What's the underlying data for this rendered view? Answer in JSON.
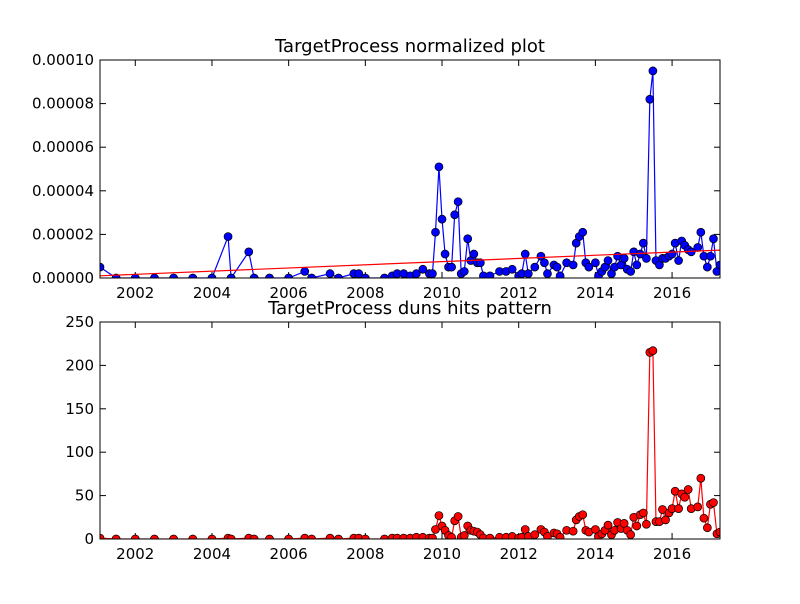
{
  "chart_data": [
    {
      "type": "line",
      "title": "TargetProcess normalized plot",
      "xlim": [
        2001.08,
        2017.25
      ],
      "xticks": [
        2002,
        2004,
        2006,
        2008,
        2010,
        2012,
        2014,
        2016
      ],
      "ylim": [
        0,
        0.0001
      ],
      "yticks": [
        {
          "value": 0,
          "label": "0.00000"
        },
        {
          "value": 2e-05,
          "label": "0.00002"
        },
        {
          "value": 4e-05,
          "label": "0.00004"
        },
        {
          "value": 6e-05,
          "label": "0.00006"
        },
        {
          "value": 8e-05,
          "label": "0.00008"
        },
        {
          "value": 0.0001,
          "label": "0.00010"
        }
      ],
      "series": [
        {
          "color": "#0000ff",
          "marker": "o",
          "x": [
            2001.08,
            2001.5,
            2002.0,
            2002.5,
            2003.0,
            2003.5,
            2004.0,
            2004.42,
            2004.5,
            2004.96,
            2005.1,
            2005.5,
            2006.0,
            2006.42,
            2006.6,
            2007.08,
            2007.3,
            2007.7,
            2007.83,
            2008.0,
            2008.5,
            2008.7,
            2008.83,
            2009.0,
            2009.17,
            2009.33,
            2009.5,
            2009.67,
            2009.75,
            2009.83,
            2009.92,
            2010.0,
            2010.08,
            2010.17,
            2010.25,
            2010.33,
            2010.42,
            2010.5,
            2010.58,
            2010.67,
            2010.75,
            2010.83,
            2010.92,
            2011.0,
            2011.08,
            2011.25,
            2011.5,
            2011.67,
            2011.83,
            2012.0,
            2012.08,
            2012.17,
            2012.25,
            2012.42,
            2012.58,
            2012.67,
            2012.75,
            2012.92,
            2013.0,
            2013.08,
            2013.25,
            2013.42,
            2013.5,
            2013.58,
            2013.67,
            2013.75,
            2013.83,
            2014.0,
            2014.08,
            2014.17,
            2014.25,
            2014.33,
            2014.42,
            2014.5,
            2014.58,
            2014.67,
            2014.75,
            2014.83,
            2014.92,
            2015.0,
            2015.08,
            2015.17,
            2015.25,
            2015.33,
            2015.42,
            2015.5,
            2015.58,
            2015.67,
            2015.75,
            2015.83,
            2015.92,
            2016.0,
            2016.08,
            2016.17,
            2016.25,
            2016.33,
            2016.42,
            2016.5,
            2016.67,
            2016.75,
            2016.83,
            2016.92,
            2017.0,
            2017.08,
            2017.17,
            2017.25
          ],
          "values": [
            5e-06,
            0,
            0,
            0,
            0,
            0,
            0,
            1.9e-05,
            0,
            1.2e-05,
            0,
            0,
            0,
            3e-06,
            0,
            2e-06,
            0,
            2e-06,
            2e-06,
            0,
            0,
            1e-06,
            2e-06,
            2e-06,
            1e-06,
            2e-06,
            4e-06,
            2e-06,
            2e-06,
            2.1e-05,
            5.1e-05,
            2.7e-05,
            1.1e-05,
            5e-06,
            5e-06,
            2.9e-05,
            3.5e-05,
            2e-06,
            3e-06,
            1.8e-05,
            8e-06,
            1.1e-05,
            7e-06,
            7e-06,
            1e-06,
            1e-06,
            3e-06,
            3e-06,
            4e-06,
            1e-06,
            2e-06,
            1.1e-05,
            2e-06,
            5e-06,
            1e-05,
            7e-06,
            2e-06,
            6e-06,
            5e-06,
            1e-06,
            7e-06,
            6e-06,
            1.6e-05,
            1.9e-05,
            2.1e-05,
            7e-06,
            5e-06,
            7e-06,
            1e-06,
            3e-06,
            5e-06,
            8e-06,
            2e-06,
            5e-06,
            1e-05,
            6e-06,
            9e-06,
            4e-06,
            3e-06,
            1.2e-05,
            6e-06,
            1.1e-05,
            1.6e-05,
            9e-06,
            8.2e-05,
            9.5e-05,
            8e-06,
            6e-06,
            9e-06,
            9e-06,
            1e-05,
            1.1e-05,
            1.6e-05,
            8e-06,
            1.7e-05,
            1.5e-05,
            1.3e-05,
            1.2e-05,
            1.4e-05,
            2.1e-05,
            1e-05,
            5e-06,
            1e-05,
            1.8e-05,
            3e-06,
            6e-06
          ]
        },
        {
          "color": "#ff0000",
          "marker": "none",
          "x": [
            2001.08,
            2017.25
          ],
          "values": [
            1e-06,
            1.28e-05
          ]
        }
      ]
    },
    {
      "type": "line",
      "title": "TargetProcess duns hits pattern",
      "xlim": [
        2001.08,
        2017.25
      ],
      "xticks": [
        2002,
        2004,
        2006,
        2008,
        2010,
        2012,
        2014,
        2016
      ],
      "ylim": [
        0,
        250
      ],
      "yticks": [
        0,
        50,
        100,
        150,
        200,
        250
      ],
      "series": [
        {
          "color": "#ff0000",
          "marker": "o",
          "x": [
            2001.08,
            2001.5,
            2002.0,
            2002.5,
            2003.0,
            2003.5,
            2004.0,
            2004.42,
            2004.5,
            2004.96,
            2005.1,
            2005.5,
            2006.0,
            2006.42,
            2006.6,
            2007.08,
            2007.3,
            2007.7,
            2007.83,
            2008.0,
            2008.5,
            2008.7,
            2008.83,
            2009.0,
            2009.17,
            2009.33,
            2009.5,
            2009.67,
            2009.75,
            2009.83,
            2009.92,
            2010.0,
            2010.08,
            2010.17,
            2010.25,
            2010.33,
            2010.42,
            2010.5,
            2010.58,
            2010.67,
            2010.75,
            2010.83,
            2010.92,
            2011.0,
            2011.08,
            2011.25,
            2011.5,
            2011.67,
            2011.83,
            2012.0,
            2012.08,
            2012.17,
            2012.25,
            2012.42,
            2012.58,
            2012.67,
            2012.75,
            2012.92,
            2013.0,
            2013.08,
            2013.25,
            2013.42,
            2013.5,
            2013.58,
            2013.67,
            2013.75,
            2013.83,
            2014.0,
            2014.08,
            2014.17,
            2014.25,
            2014.33,
            2014.42,
            2014.5,
            2014.58,
            2014.67,
            2014.75,
            2014.83,
            2014.92,
            2015.0,
            2015.08,
            2015.17,
            2015.25,
            2015.33,
            2015.42,
            2015.5,
            2015.58,
            2015.67,
            2015.75,
            2015.83,
            2015.92,
            2016.0,
            2016.08,
            2016.17,
            2016.25,
            2016.33,
            2016.42,
            2016.5,
            2016.67,
            2016.75,
            2016.83,
            2016.92,
            2017.0,
            2017.08,
            2017.17,
            2017.25
          ],
          "values": [
            1,
            0,
            0,
            0,
            0,
            0,
            0,
            1,
            0,
            1,
            0,
            0,
            0,
            1,
            0,
            1,
            0,
            1,
            1,
            0,
            0,
            1,
            1,
            1,
            1,
            2,
            2,
            1,
            1,
            11,
            27,
            15,
            10,
            4,
            2,
            21,
            26,
            2,
            4,
            15,
            10,
            9,
            8,
            5,
            1,
            1,
            2,
            2,
            3,
            1,
            2,
            11,
            3,
            5,
            11,
            8,
            3,
            7,
            6,
            2,
            10,
            9,
            22,
            26,
            28,
            10,
            8,
            11,
            3,
            6,
            10,
            16,
            5,
            10,
            19,
            12,
            18,
            10,
            5,
            25,
            15,
            28,
            30,
            17,
            215,
            217,
            20,
            20,
            34,
            22,
            30,
            35,
            55,
            35,
            52,
            48,
            57,
            35,
            37,
            70,
            24,
            13,
            40,
            42,
            6,
            8
          ]
        }
      ]
    }
  ]
}
